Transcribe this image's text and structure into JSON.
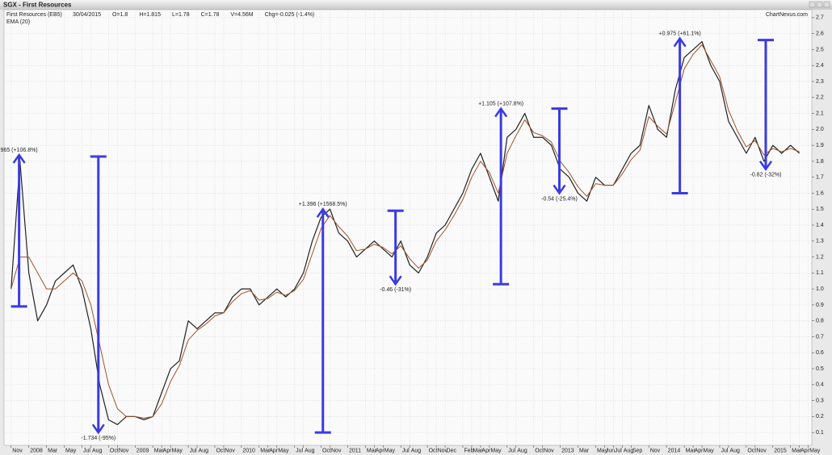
{
  "chart_data": {
    "type": "line",
    "title": "SGX - First Resources",
    "info": [
      "30/04/2015",
      "O=1.8",
      "H=1.815",
      "L=1.78",
      "C=1.78",
      "V=4.56M",
      "Chg=-0.025 (-1.4%)"
    ],
    "watermark": "ChartNexus.com",
    "x": [
      0,
      1,
      2,
      3,
      4,
      5,
      6,
      7,
      8,
      9,
      10,
      11,
      12,
      13,
      14,
      15,
      16,
      17,
      18,
      19,
      20,
      21,
      22,
      23,
      24,
      25,
      26,
      27,
      28,
      29,
      30,
      31,
      32,
      33,
      34,
      35,
      36,
      37,
      38,
      39,
      40,
      41,
      42,
      43,
      44,
      45,
      46,
      47,
      48,
      49,
      50,
      51,
      52,
      53,
      54,
      55,
      56,
      57,
      58,
      59,
      60,
      61,
      62,
      63,
      64,
      65,
      66,
      67,
      68,
      69,
      70,
      71,
      72,
      73,
      74,
      75,
      76,
      77,
      78,
      79,
      80,
      81,
      82,
      83,
      84,
      85,
      86,
      87,
      88,
      89
    ],
    "series": [
      {
        "name": "First Resources (EB5)",
        "color": "#222222",
        "values": [
          1.0,
          1.8,
          1.1,
          0.8,
          0.9,
          1.05,
          1.1,
          1.15,
          1.0,
          0.75,
          0.4,
          0.18,
          0.15,
          0.2,
          0.2,
          0.18,
          0.2,
          0.35,
          0.5,
          0.55,
          0.8,
          0.75,
          0.8,
          0.85,
          0.85,
          0.95,
          1.0,
          1.0,
          0.9,
          0.95,
          1.0,
          0.95,
          1.0,
          1.1,
          1.3,
          1.45,
          1.5,
          1.35,
          1.3,
          1.2,
          1.25,
          1.3,
          1.25,
          1.2,
          1.3,
          1.15,
          1.1,
          1.2,
          1.35,
          1.4,
          1.5,
          1.6,
          1.75,
          1.85,
          1.7,
          1.55,
          1.95,
          2.0,
          2.1,
          1.95,
          1.95,
          1.9,
          1.75,
          1.7,
          1.6,
          1.55,
          1.7,
          1.65,
          1.65,
          1.75,
          1.85,
          1.9,
          2.15,
          2.0,
          1.95,
          2.25,
          2.45,
          2.5,
          2.55,
          2.4,
          2.3,
          2.05,
          1.95,
          1.85,
          1.95,
          1.8,
          1.9,
          1.85,
          1.9,
          1.85
        ]
      },
      {
        "name": "EMA (20)",
        "color": "#a0522d",
        "values": [
          1.0,
          1.2,
          1.2,
          1.1,
          1.0,
          1.0,
          1.05,
          1.1,
          1.05,
          0.9,
          0.65,
          0.4,
          0.25,
          0.2,
          0.2,
          0.19,
          0.2,
          0.28,
          0.42,
          0.52,
          0.68,
          0.74,
          0.78,
          0.83,
          0.85,
          0.92,
          0.97,
          0.99,
          0.93,
          0.94,
          0.98,
          0.96,
          0.99,
          1.06,
          1.22,
          1.38,
          1.46,
          1.39,
          1.33,
          1.24,
          1.25,
          1.28,
          1.26,
          1.22,
          1.27,
          1.19,
          1.13,
          1.18,
          1.3,
          1.37,
          1.46,
          1.56,
          1.7,
          1.8,
          1.73,
          1.6,
          1.85,
          1.96,
          2.06,
          1.98,
          1.96,
          1.92,
          1.8,
          1.73,
          1.64,
          1.58,
          1.66,
          1.65,
          1.65,
          1.72,
          1.81,
          1.87,
          2.08,
          2.02,
          1.97,
          2.17,
          2.38,
          2.47,
          2.53,
          2.43,
          2.33,
          2.12,
          1.99,
          1.89,
          1.93,
          1.84,
          1.88,
          1.86,
          1.88,
          1.86
        ]
      }
    ],
    "xlim": [
      -0.8,
      90.4
    ],
    "xticks": [
      {
        "value": 0,
        "label": "Nov"
      },
      {
        "value": 2,
        "label": "2008"
      },
      {
        "value": 4,
        "label": "Mar"
      },
      {
        "value": 6,
        "label": "May"
      },
      {
        "value": 8,
        "label": "Jul"
      },
      {
        "value": 9,
        "label": "Aug"
      },
      {
        "value": 11,
        "label": "Oct"
      },
      {
        "value": 12,
        "label": "Nov"
      },
      {
        "value": 14,
        "label": "2009"
      },
      {
        "value": 16,
        "label": "Mar"
      },
      {
        "value": 17,
        "label": "Apr"
      },
      {
        "value": 18,
        "label": "May"
      },
      {
        "value": 20,
        "label": "Jul"
      },
      {
        "value": 21,
        "label": "Aug"
      },
      {
        "value": 23,
        "label": "Oct"
      },
      {
        "value": 24,
        "label": "Nov"
      },
      {
        "value": 26,
        "label": "2010"
      },
      {
        "value": 28,
        "label": "Mar"
      },
      {
        "value": 29,
        "label": "Apr"
      },
      {
        "value": 30,
        "label": "May"
      },
      {
        "value": 32,
        "label": "Jul"
      },
      {
        "value": 33,
        "label": "Aug"
      },
      {
        "value": 35,
        "label": "Oct"
      },
      {
        "value": 36,
        "label": "Nov"
      },
      {
        "value": 38,
        "label": "2011"
      },
      {
        "value": 40,
        "label": "Mar"
      },
      {
        "value": 41,
        "label": "Apr"
      },
      {
        "value": 42,
        "label": "May"
      },
      {
        "value": 44,
        "label": "Jul"
      },
      {
        "value": 45,
        "label": "Aug"
      },
      {
        "value": 47,
        "label": "Oct"
      },
      {
        "value": 48,
        "label": "Nov"
      },
      {
        "value": 49,
        "label": "Dec"
      },
      {
        "value": 51,
        "label": "Feb"
      },
      {
        "value": 52,
        "label": "Mar"
      },
      {
        "value": 53,
        "label": "Apr"
      },
      {
        "value": 54,
        "label": "May"
      },
      {
        "value": 56,
        "label": "Jul"
      },
      {
        "value": 57,
        "label": "Aug"
      },
      {
        "value": 59,
        "label": "Oct"
      },
      {
        "value": 60,
        "label": "Nov"
      },
      {
        "value": 62,
        "label": "2013"
      },
      {
        "value": 64,
        "label": "Mar"
      },
      {
        "value": 66,
        "label": "May"
      },
      {
        "value": 67,
        "label": "Jun"
      },
      {
        "value": 68,
        "label": "Jul"
      },
      {
        "value": 69,
        "label": "Aug"
      },
      {
        "value": 70,
        "label": "Sep"
      },
      {
        "value": 72,
        "label": "Nov"
      },
      {
        "value": 74,
        "label": "2014"
      },
      {
        "value": 76,
        "label": "Mar"
      },
      {
        "value": 77,
        "label": "Apr"
      },
      {
        "value": 78,
        "label": "May"
      },
      {
        "value": 80,
        "label": "Jul"
      },
      {
        "value": 81,
        "label": "Aug"
      },
      {
        "value": 83,
        "label": "Oct"
      },
      {
        "value": 84,
        "label": "Nov"
      },
      {
        "value": 86,
        "label": "2015"
      },
      {
        "value": 88,
        "label": "Mar"
      },
      {
        "value": 89,
        "label": "Apr"
      },
      {
        "value": 90,
        "label": "May"
      }
    ],
    "ylim": [
      0.02,
      2.75
    ],
    "yticks": [
      0.1,
      0.2,
      0.3,
      0.4,
      0.5,
      0.6,
      0.7,
      0.8,
      0.9,
      {
        "value": 1,
        "label": "1.0"
      },
      1.1,
      1.2,
      1.3,
      1.4,
      1.5,
      1.6,
      1.7,
      1.8,
      1.9,
      {
        "value": 2,
        "label": "2.0"
      },
      2.1,
      2.2,
      2.3,
      2.4,
      2.5,
      2.6,
      2.7
    ],
    "grid": true,
    "annotation_color": "#3a3ae6",
    "annotations": [
      {
        "x": 0.9,
        "from": 0.89,
        "to": 1.84,
        "label": "965 (+106.8%)"
      },
      {
        "x": 9.85,
        "from": 1.83,
        "to": 0.1,
        "label": "-1.734 (-95%)"
      },
      {
        "x": 35.2,
        "from": 0.1,
        "to": 1.5,
        "label": "+1.396 (+1568.5%)"
      },
      {
        "x": 43.4,
        "from": 1.49,
        "to": 1.03,
        "label": "-0.46 (-31%)"
      },
      {
        "x": 55.3,
        "from": 1.03,
        "to": 2.13,
        "label": "+1.105 (+107.8%)"
      },
      {
        "x": 61.9,
        "from": 2.13,
        "to": 1.6,
        "label": "-0.54 (-25.4%)"
      },
      {
        "x": 75.5,
        "from": 1.6,
        "to": 2.57,
        "label": "+0.975 (+61.1%)"
      },
      {
        "x": 85.2,
        "from": 2.56,
        "to": 1.75,
        "label": "-0.82 (-32%)"
      }
    ]
  }
}
